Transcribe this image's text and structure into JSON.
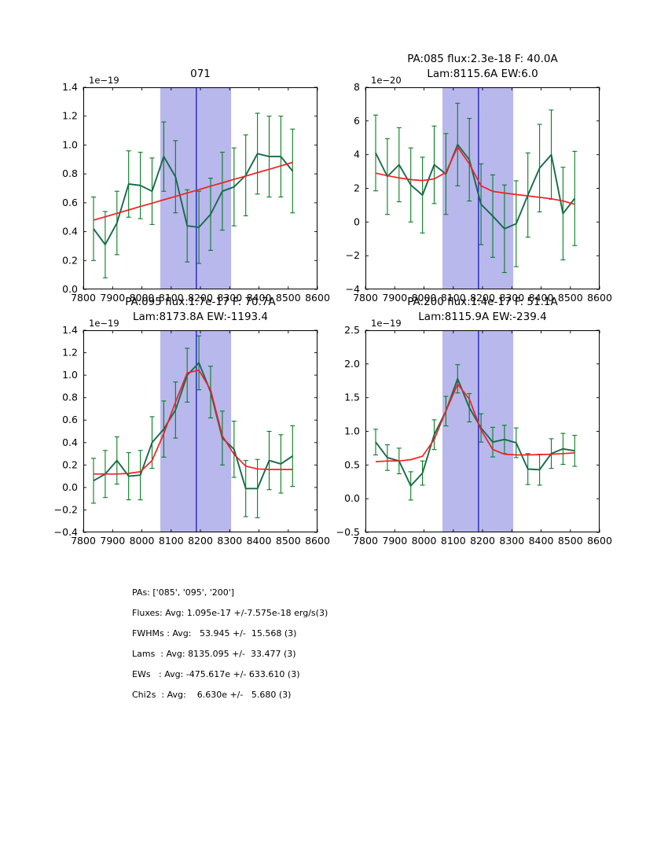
{
  "colors": {
    "band": "#b8b8ec",
    "vline": "#2222cc",
    "errorbar": "#077d21",
    "data_line": "#176b49",
    "fit_line": "#ee2224",
    "axis": "#000000",
    "background": "#ffffff"
  },
  "xlim": [
    7800,
    8600
  ],
  "band": [
    8063,
    8305
  ],
  "vline": 8186,
  "xticks": {
    "values": [
      7800,
      7900,
      8000,
      8100,
      8200,
      8300,
      8400,
      8500,
      8600
    ],
    "labels": [
      "7800",
      "7900",
      "8000",
      "8100",
      "8200",
      "8300",
      "8400",
      "8500",
      "8600"
    ]
  },
  "chart_data": [
    {
      "type": "line",
      "grid": false,
      "legend": "none",
      "title_lines": [
        "",
        "071"
      ],
      "unit": "1e−19",
      "ylim": [
        0.0,
        1.4
      ],
      "yticks": [
        0.0,
        0.2,
        0.4,
        0.6,
        0.8,
        1.0,
        1.2,
        1.4
      ],
      "ytick_labels": [
        "0.0",
        "0.2",
        "0.4",
        "0.6",
        "0.8",
        "1.0",
        "1.2",
        "1.4"
      ],
      "x": [
        7835,
        7875,
        7915,
        7955,
        7995,
        8035,
        8075,
        8115,
        8155,
        8195,
        8235,
        8275,
        8315,
        8355,
        8395,
        8435,
        8475,
        8515
      ],
      "y": [
        0.42,
        0.31,
        0.46,
        0.73,
        0.72,
        0.68,
        0.92,
        0.78,
        0.44,
        0.43,
        0.52,
        0.68,
        0.71,
        0.79,
        0.94,
        0.92,
        0.92,
        0.82
      ],
      "err": [
        0.22,
        0.23,
        0.22,
        0.23,
        0.23,
        0.23,
        0.24,
        0.25,
        0.25,
        0.25,
        0.25,
        0.27,
        0.27,
        0.28,
        0.28,
        0.28,
        0.28,
        0.29
      ],
      "fit": [
        0.48,
        0.503,
        0.527,
        0.55,
        0.574,
        0.597,
        0.621,
        0.644,
        0.668,
        0.691,
        0.715,
        0.738,
        0.762,
        0.785,
        0.809,
        0.832,
        0.856,
        0.88
      ]
    },
    {
      "type": "line",
      "grid": false,
      "legend": "none",
      "title_lines": [
        "PA:085 flux:2.3e-18 F: 40.0A",
        "Lam:8115.6A EW:6.0"
      ],
      "unit": "1e−20",
      "ylim": [
        -4,
        8
      ],
      "yticks": [
        -4,
        -2,
        0,
        2,
        4,
        6,
        8
      ],
      "ytick_labels": [
        "−4",
        "−2",
        "0",
        "2",
        "4",
        "6",
        "8"
      ],
      "x": [
        7835,
        7875,
        7915,
        7955,
        7995,
        8035,
        8075,
        8115,
        8155,
        8195,
        8235,
        8275,
        8315,
        8355,
        8395,
        8435,
        8475,
        8515
      ],
      "y": [
        4.1,
        2.7,
        3.4,
        2.2,
        1.6,
        3.4,
        2.85,
        4.6,
        3.7,
        1.05,
        0.35,
        -0.4,
        -0.1,
        1.6,
        3.2,
        4.0,
        0.5,
        1.4
      ],
      "err": [
        2.25,
        2.25,
        2.2,
        2.2,
        2.25,
        2.3,
        2.4,
        2.45,
        2.45,
        2.4,
        2.45,
        2.6,
        2.55,
        2.5,
        2.6,
        2.65,
        2.75,
        2.8
      ],
      "fit": [
        2.9,
        2.75,
        2.62,
        2.52,
        2.46,
        2.56,
        2.95,
        4.45,
        3.45,
        2.15,
        1.82,
        1.72,
        1.63,
        1.55,
        1.47,
        1.38,
        1.25,
        1.05
      ]
    },
    {
      "type": "line",
      "grid": false,
      "legend": "none",
      "title_lines": [
        "PA:095 flux:1.7e-17 F: 70.7A",
        "Lam:8173.8A EW:-1193.4"
      ],
      "unit": "1e−19",
      "ylim": [
        -0.4,
        1.4
      ],
      "yticks": [
        -0.4,
        -0.2,
        0.0,
        0.2,
        0.4,
        0.6,
        0.8,
        1.0,
        1.2,
        1.4
      ],
      "ytick_labels": [
        "−0.4",
        "−0.2",
        "0.0",
        "0.2",
        "0.4",
        "0.6",
        "0.8",
        "1.0",
        "1.2",
        "1.4"
      ],
      "x": [
        7835,
        7875,
        7915,
        7955,
        7995,
        8035,
        8075,
        8115,
        8155,
        8195,
        8235,
        8275,
        8315,
        8355,
        8395,
        8435,
        8475,
        8515
      ],
      "y": [
        0.06,
        0.12,
        0.24,
        0.1,
        0.11,
        0.4,
        0.52,
        0.69,
        1.0,
        1.11,
        0.85,
        0.44,
        0.34,
        -0.01,
        -0.01,
        0.24,
        0.21,
        0.28
      ],
      "err": [
        0.2,
        0.21,
        0.21,
        0.21,
        0.22,
        0.23,
        0.25,
        0.25,
        0.24,
        0.24,
        0.23,
        0.24,
        0.25,
        0.25,
        0.26,
        0.26,
        0.26,
        0.27
      ],
      "fit": [
        0.12,
        0.12,
        0.12,
        0.125,
        0.14,
        0.24,
        0.48,
        0.76,
        1.02,
        1.045,
        0.87,
        0.46,
        0.295,
        0.19,
        0.165,
        0.16,
        0.16,
        0.16
      ]
    },
    {
      "type": "line",
      "grid": false,
      "legend": "none",
      "title_lines": [
        "PA:200 flux:1.4e-17 F: 51.1A",
        "Lam:8115.9A EW:-239.4"
      ],
      "unit": "1e−19",
      "ylim": [
        -0.5,
        2.5
      ],
      "yticks": [
        -0.5,
        0.0,
        0.5,
        1.0,
        1.5,
        2.0,
        2.5
      ],
      "ytick_labels": [
        "−0.5",
        "0.0",
        "0.5",
        "1.0",
        "1.5",
        "2.0",
        "2.5"
      ],
      "x": [
        7835,
        7875,
        7915,
        7955,
        7995,
        8035,
        8075,
        8115,
        8155,
        8195,
        8235,
        8275,
        8315,
        8355,
        8395,
        8435,
        8475,
        8515
      ],
      "y": [
        0.84,
        0.61,
        0.56,
        0.19,
        0.38,
        0.95,
        1.3,
        1.78,
        1.35,
        1.05,
        0.84,
        0.88,
        0.83,
        0.44,
        0.43,
        0.67,
        0.74,
        0.71
      ],
      "err": [
        0.19,
        0.19,
        0.19,
        0.21,
        0.18,
        0.22,
        0.22,
        0.21,
        0.21,
        0.21,
        0.22,
        0.21,
        0.22,
        0.23,
        0.23,
        0.22,
        0.23,
        0.23
      ],
      "fit": [
        0.55,
        0.56,
        0.56,
        0.58,
        0.63,
        0.88,
        1.3,
        1.7,
        1.48,
        1.02,
        0.73,
        0.66,
        0.65,
        0.65,
        0.655,
        0.66,
        0.67,
        0.68
      ]
    }
  ],
  "summary": {
    "lines": [
      "PAs: ['085', '095', '200']",
      "Fluxes: Avg: 1.095e-17 +/-7.575e-18 erg/s(3)",
      "FWHMs : Avg:   53.945 +/-  15.568 (3)",
      "Lams  : Avg: 8135.095 +/-  33.477 (3)",
      "EWs   : Avg: -475.617e +/- 633.610 (3)",
      "Chi2s  : Avg:    6.630e +/-   5.680 (3)"
    ]
  }
}
